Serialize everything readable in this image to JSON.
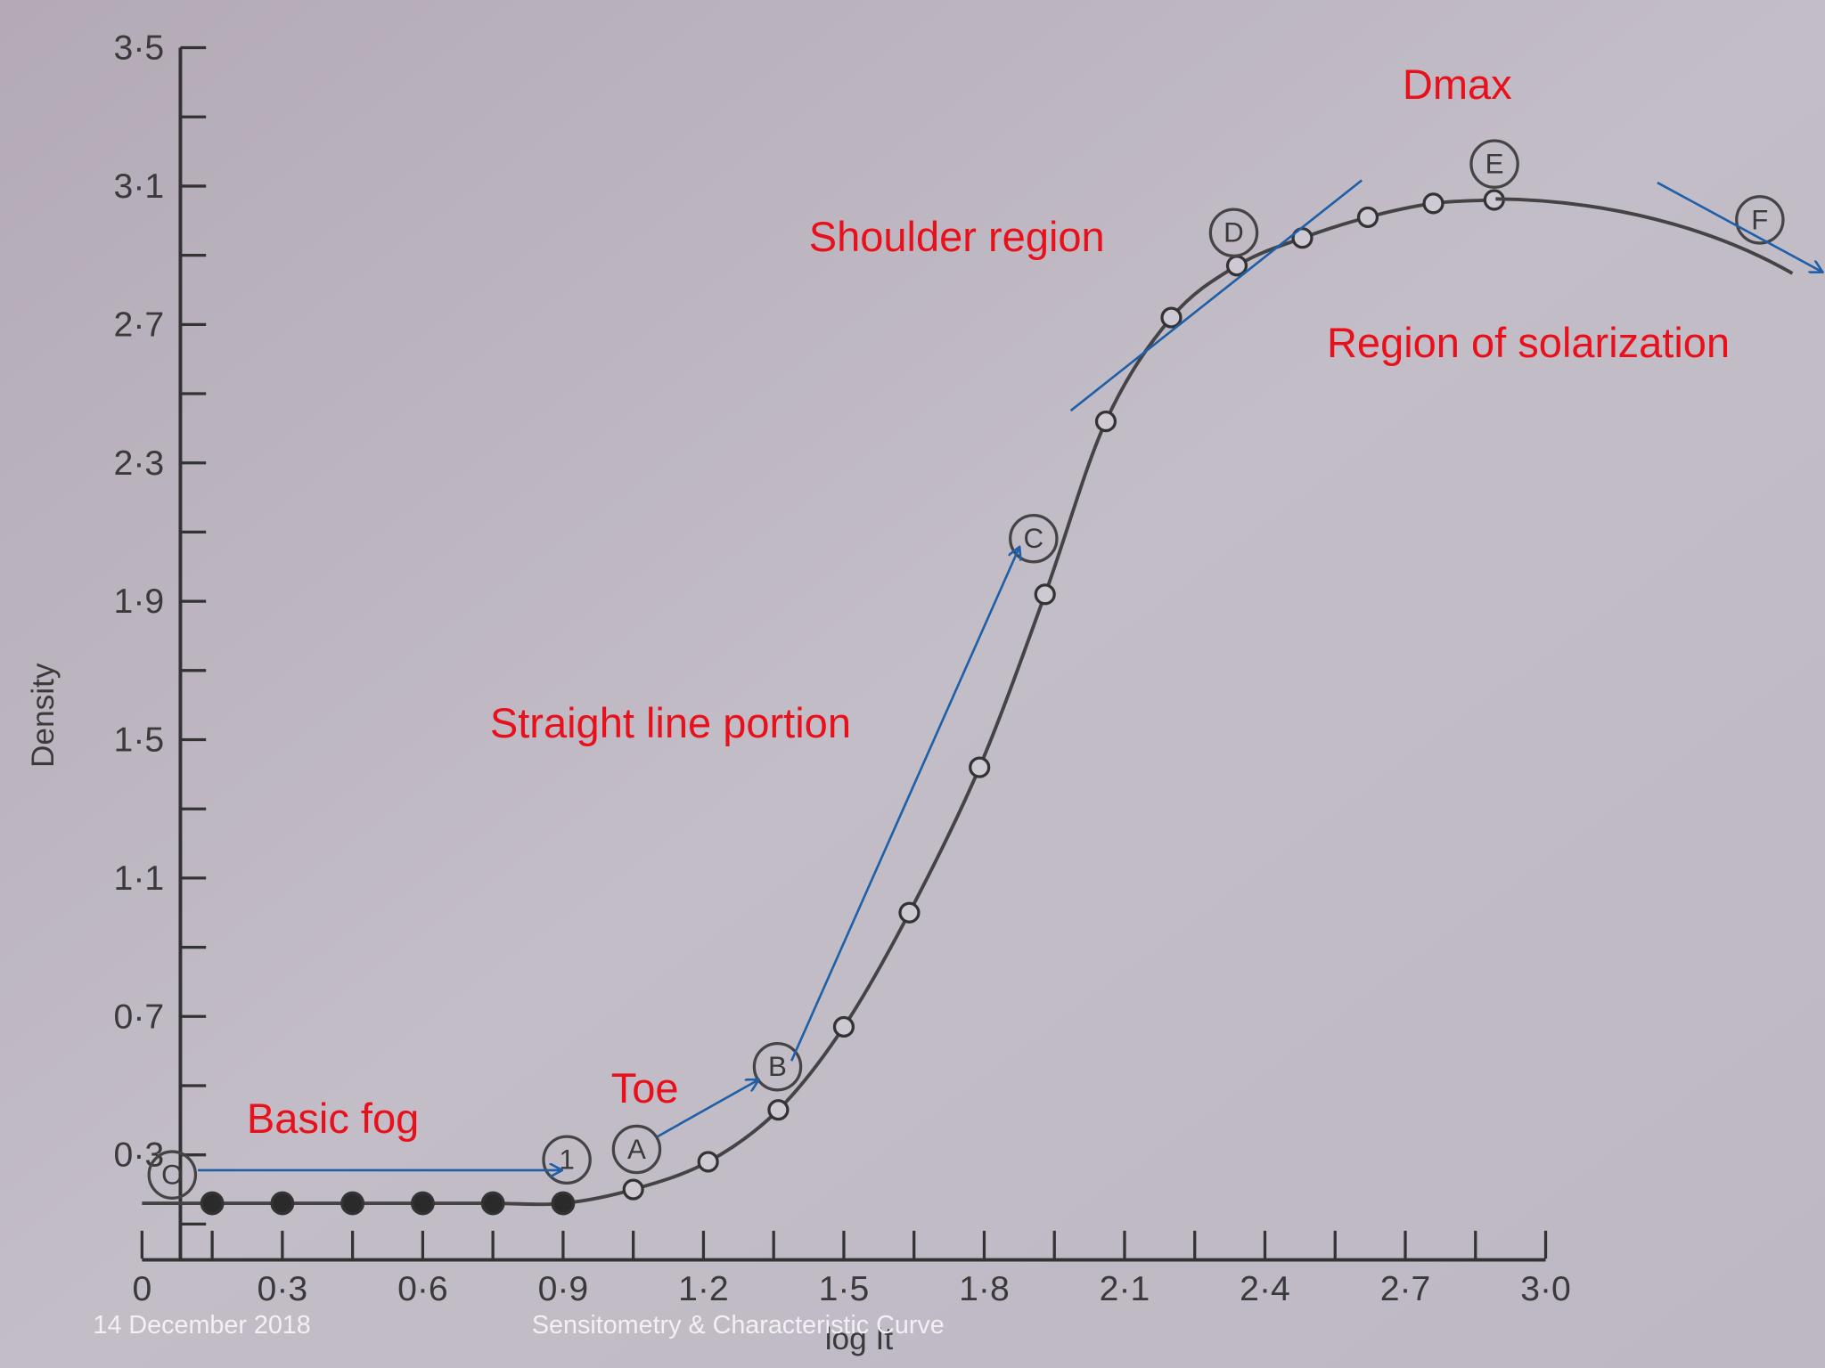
{
  "chart_data": {
    "type": "line",
    "x_label": "log It",
    "y_label": "Density",
    "xlim": [
      0,
      3.0
    ],
    "ylim": [
      0,
      3.5
    ],
    "xticks": [
      0,
      {
        "value": 0.3,
        "label": "0·3"
      },
      {
        "value": 0.6,
        "label": "0·6"
      },
      {
        "value": 0.9,
        "label": "0·9"
      },
      {
        "value": 1.2,
        "label": "1·2"
      },
      {
        "value": 1.5,
        "label": "1·5"
      },
      {
        "value": 1.8,
        "label": "1·8"
      },
      {
        "value": 2.1,
        "label": "2·1"
      },
      {
        "value": 2.4,
        "label": "2·4"
      },
      {
        "value": 2.7,
        "label": "2·7"
      },
      {
        "value": 3.0,
        "label": "3·0"
      }
    ],
    "xminorticks": [
      0.15,
      0.45,
      0.75,
      1.05,
      1.35,
      1.65,
      1.95,
      2.25,
      2.55,
      2.85
    ],
    "yticks": [
      {
        "value": 0.3,
        "label": "0·3"
      },
      {
        "value": 0.7,
        "label": "0·7"
      },
      {
        "value": 1.1,
        "label": "1·1"
      },
      {
        "value": 1.5,
        "label": "1·5"
      },
      {
        "value": 1.9,
        "label": "1·9"
      },
      {
        "value": 2.3,
        "label": "2·3"
      },
      {
        "value": 2.7,
        "label": "2·7"
      },
      {
        "value": 3.1,
        "label": "3·1"
      },
      {
        "value": 3.5,
        "label": "3·5"
      }
    ],
    "yminorticks": [
      0.1,
      0.5,
      0.9,
      1.3,
      1.7,
      2.1,
      2.5,
      2.9,
      3.3
    ],
    "color": "#444444",
    "series": [
      {
        "marker": "filled",
        "x": [
          0.15,
          0.3,
          0.45,
          0.6,
          0.75,
          0.9
        ],
        "values": [
          0.16,
          0.16,
          0.16,
          0.16,
          0.16,
          0.16
        ]
      },
      {
        "marker": "open",
        "x": [
          1.05,
          1.21,
          1.36,
          1.5,
          1.64,
          1.79,
          1.93,
          2.06,
          2.2,
          2.34,
          2.48,
          2.62,
          2.76,
          2.89
        ],
        "values": [
          0.2,
          0.28,
          0.43,
          0.67,
          1.0,
          1.42,
          1.92,
          2.42,
          2.72,
          2.87,
          2.95,
          3.01,
          3.05,
          3.06
        ]
      }
    ],
    "point_labels": [
      "O",
      "1",
      "A",
      "B",
      "C",
      "D",
      "E",
      "F"
    ],
    "annotations": [
      "Basic fog",
      "Toe",
      "Straight line portion",
      "Shoulder region",
      "Dmax",
      "Region of solarization"
    ]
  },
  "footer": {
    "date": "14 December 2018",
    "title": "Sensitometry & Characteristic Curve"
  }
}
